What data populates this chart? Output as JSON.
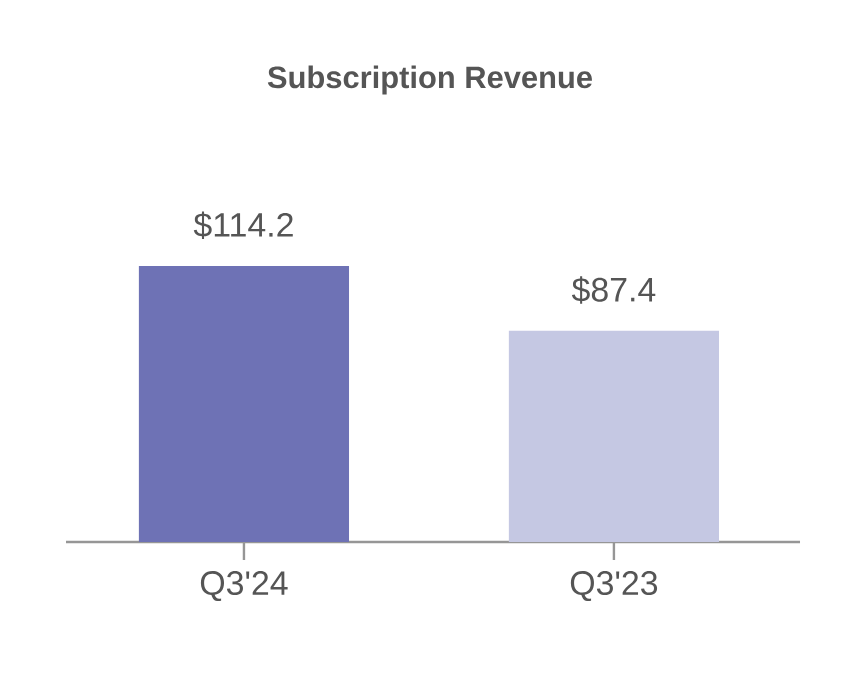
{
  "chart_data": {
    "type": "bar",
    "title": "Subscription Revenue",
    "categories": [
      "Q3'24",
      "Q3'23"
    ],
    "values": [
      114.2,
      87.4
    ],
    "colors": [
      "#6e72b5",
      "#c5c8e3"
    ],
    "value_labels": [
      "$114.2",
      "$87.4"
    ]
  }
}
